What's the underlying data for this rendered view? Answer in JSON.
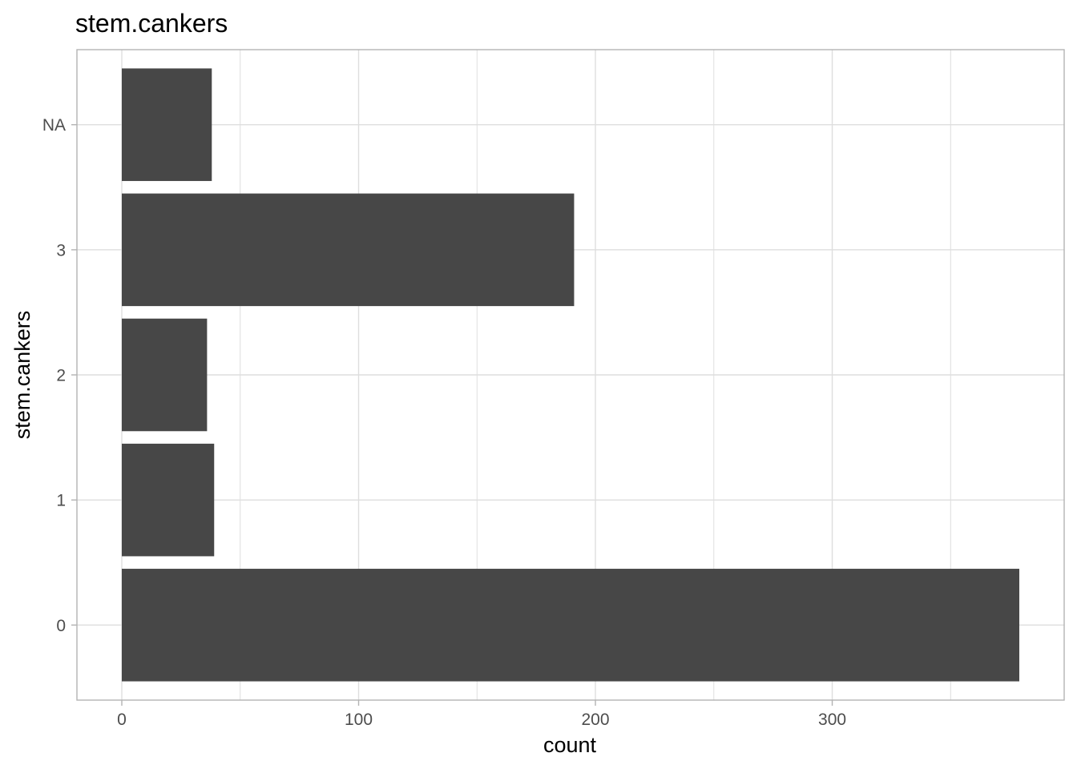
{
  "chart_data": {
    "type": "bar",
    "orientation": "horizontal",
    "title": "stem.cankers",
    "xlabel": "count",
    "ylabel": "stem.cankers",
    "categories": [
      "0",
      "1",
      "2",
      "3",
      "NA"
    ],
    "values": [
      379,
      39,
      36,
      191,
      38
    ],
    "xlim": [
      -18.95,
      397.95
    ],
    "x_ticks": [
      0,
      100,
      200,
      300
    ],
    "x_tick_labels": [
      "0",
      "100",
      "200",
      "300"
    ],
    "grid": true,
    "legend": "none",
    "colors": {
      "bar": "#474747",
      "grid": "#dedede",
      "border": "#b3b3b3",
      "tick_label": "#4d4d4d",
      "tick_mark": "#b3b3b3",
      "text": "#000000"
    }
  }
}
